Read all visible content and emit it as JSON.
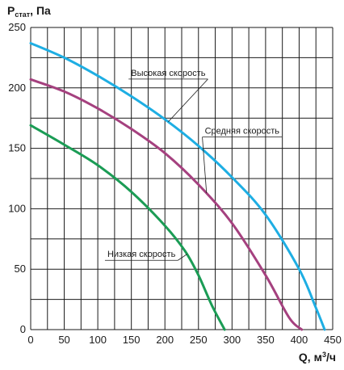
{
  "chart_data": {
    "type": "line",
    "ylabel": {
      "main": "P",
      "sub": "стат",
      "unit": ", Па"
    },
    "xlabel": {
      "main": "Q, м",
      "sup": "3",
      "unit": "/ч"
    },
    "xlim": [
      0,
      450
    ],
    "ylim": [
      0,
      250
    ],
    "x_ticks": [
      0,
      50,
      100,
      150,
      200,
      250,
      300,
      350,
      400,
      450
    ],
    "y_ticks": [
      0,
      50,
      100,
      150,
      200,
      250
    ],
    "grid": true,
    "series": [
      {
        "name": "Высокая скорость",
        "color": "#1eaee3",
        "points": [
          [
            0,
            237
          ],
          [
            50,
            225
          ],
          [
            100,
            210
          ],
          [
            150,
            193
          ],
          [
            200,
            174
          ],
          [
            250,
            152
          ],
          [
            300,
            126
          ],
          [
            350,
            95
          ],
          [
            400,
            50
          ],
          [
            425,
            18
          ],
          [
            438,
            0
          ]
        ]
      },
      {
        "name": "Средняя скорость",
        "color": "#a5417f",
        "points": [
          [
            0,
            207
          ],
          [
            50,
            197
          ],
          [
            100,
            183
          ],
          [
            150,
            166
          ],
          [
            200,
            146
          ],
          [
            250,
            120
          ],
          [
            300,
            88
          ],
          [
            350,
            45
          ],
          [
            385,
            10
          ],
          [
            404,
            0
          ]
        ]
      },
      {
        "name": "Низкая скорость",
        "color": "#1b9c55",
        "points": [
          [
            0,
            169
          ],
          [
            50,
            153
          ],
          [
            100,
            136
          ],
          [
            150,
            114
          ],
          [
            200,
            86
          ],
          [
            230,
            65
          ],
          [
            250,
            45
          ],
          [
            270,
            20
          ],
          [
            289,
            0
          ]
        ]
      }
    ],
    "annotations": [
      {
        "series": 0,
        "text": "Высокая скорость",
        "at": [
          205,
          210
        ]
      },
      {
        "series": 1,
        "text": "Средняя скорость",
        "at": [
          315,
          162
        ]
      },
      {
        "series": 2,
        "text": "Низкая скорость",
        "at": [
          165,
          60
        ]
      }
    ]
  }
}
